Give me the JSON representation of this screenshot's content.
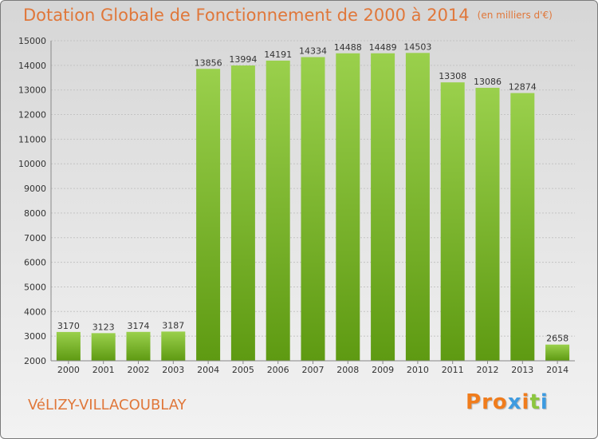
{
  "header": {
    "title": "Dotation Globale de Fonctionnement de 2000 à 2014",
    "unit": "(en milliers d'€)"
  },
  "footer": {
    "commune": "VéLIZY-VILLACOUBLAY",
    "logo_letters": [
      "P",
      "r",
      "o",
      "x",
      "i",
      "t",
      "i"
    ]
  },
  "colors": {
    "title": "#e0773a",
    "bar_light": "#9ad04c",
    "bar_dark": "#5e9a12",
    "logo": [
      "#f07c1c",
      "#f07c1c",
      "#f07c1c",
      "#3e9be0",
      "#f07c1c",
      "#8cc63f",
      "#3e9be0"
    ]
  },
  "chart_data": {
    "type": "bar",
    "title": "Dotation Globale de Fonctionnement de 2000 à 2014",
    "subtitle": "(en milliers d'€)",
    "xlabel": "",
    "ylabel": "",
    "categories": [
      "2000",
      "2001",
      "2002",
      "2003",
      "2004",
      "2005",
      "2006",
      "2007",
      "2008",
      "2009",
      "2010",
      "2011",
      "2012",
      "2013",
      "2014"
    ],
    "values": [
      3170,
      3123,
      3174,
      3187,
      13856,
      13994,
      14191,
      14334,
      14488,
      14489,
      14503,
      13308,
      13086,
      12874,
      2658
    ],
    "ylim": [
      2000,
      15000
    ],
    "yticks": [
      2000,
      3000,
      4000,
      5000,
      6000,
      7000,
      8000,
      9000,
      10000,
      11000,
      12000,
      13000,
      14000,
      15000
    ],
    "grid": true
  }
}
